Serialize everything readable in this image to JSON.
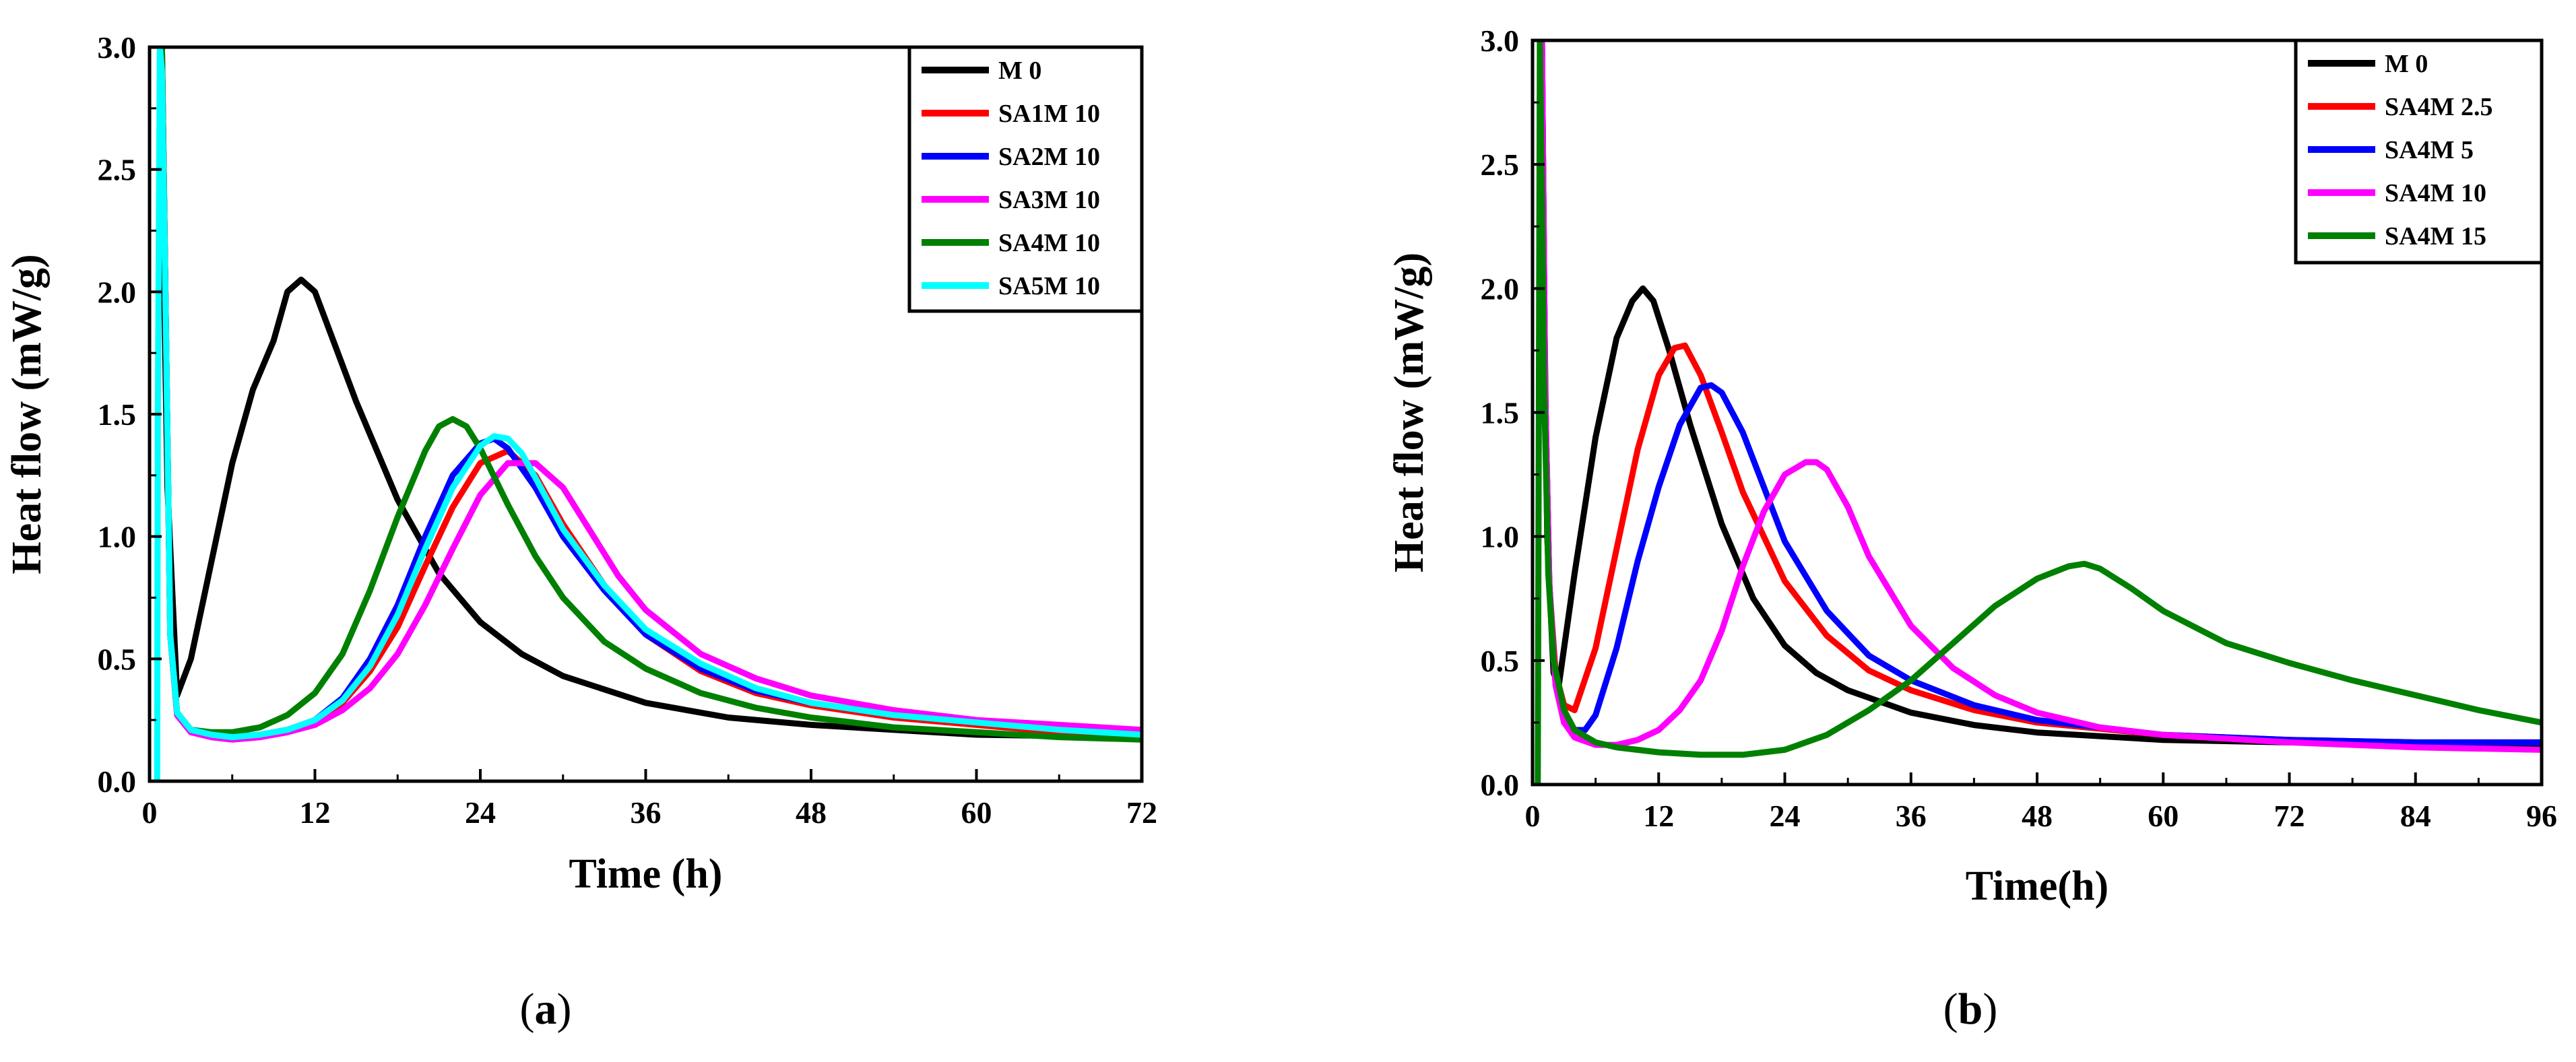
{
  "chart_data": [
    {
      "id": "a",
      "type": "line",
      "caption_letter": "a",
      "xlabel": "Time (h)",
      "ylabel": "Heat flow (mW/g)",
      "xlim": [
        0,
        72
      ],
      "ylim": [
        0,
        3.0
      ],
      "xticks": [
        0,
        12,
        24,
        36,
        48,
        60,
        72
      ],
      "yticks": [
        0.0,
        0.5,
        1.0,
        1.5,
        2.0,
        2.5,
        3.0
      ],
      "ytick_labels": [
        "0.0",
        "0.5",
        "1.0",
        "1.5",
        "2.0",
        "2.5",
        "3.0"
      ],
      "legend_position": "top-right",
      "series": [
        {
          "name": "M 0",
          "color": "#000000",
          "x": [
            0.8,
            1.0,
            1.3,
            2.0,
            3.0,
            4.5,
            6,
            7.5,
            9,
            10,
            11,
            12,
            13,
            15,
            18,
            21,
            24,
            27,
            30,
            36,
            42,
            48,
            54,
            60,
            66,
            72
          ],
          "y": [
            3.0,
            2.2,
            1.2,
            0.35,
            0.5,
            0.9,
            1.3,
            1.6,
            1.8,
            2.0,
            2.05,
            2.0,
            1.85,
            1.55,
            1.15,
            0.85,
            0.65,
            0.52,
            0.43,
            0.32,
            0.26,
            0.23,
            0.21,
            0.19,
            0.185,
            0.18
          ]
        },
        {
          "name": "SA1M 10",
          "color": "#ff0000",
          "x": [
            0.9,
            1.2,
            1.5,
            2,
            3,
            4.5,
            6,
            8,
            10,
            12,
            14,
            16,
            18,
            20,
            22,
            24,
            26,
            28,
            30,
            33,
            36,
            40,
            44,
            48,
            54,
            60,
            66,
            72
          ],
          "y": [
            3.0,
            1.8,
            0.6,
            0.27,
            0.2,
            0.18,
            0.17,
            0.18,
            0.2,
            0.24,
            0.32,
            0.45,
            0.63,
            0.88,
            1.12,
            1.3,
            1.35,
            1.25,
            1.05,
            0.8,
            0.6,
            0.45,
            0.36,
            0.31,
            0.26,
            0.23,
            0.2,
            0.18
          ]
        },
        {
          "name": "SA2M 10",
          "color": "#0000ff",
          "x": [
            0.9,
            1.2,
            1.5,
            2,
            3,
            4.5,
            6,
            8,
            10,
            12,
            14,
            16,
            18,
            20,
            22,
            24,
            25,
            26,
            28,
            30,
            33,
            36,
            40,
            44,
            48,
            54,
            60,
            66,
            72
          ],
          "y": [
            3.0,
            1.8,
            0.6,
            0.28,
            0.21,
            0.19,
            0.18,
            0.19,
            0.21,
            0.25,
            0.34,
            0.5,
            0.72,
            1.0,
            1.25,
            1.38,
            1.4,
            1.36,
            1.2,
            1.0,
            0.78,
            0.6,
            0.46,
            0.37,
            0.32,
            0.27,
            0.24,
            0.22,
            0.2
          ]
        },
        {
          "name": "SA3M 10",
          "color": "#ff00ff",
          "x": [
            0.9,
            1.2,
            1.5,
            2,
            3,
            4.5,
            6,
            8,
            10,
            12,
            14,
            16,
            18,
            20,
            22,
            24,
            26,
            28,
            30,
            32,
            34,
            36,
            40,
            44,
            48,
            54,
            60,
            66,
            72
          ],
          "y": [
            3.0,
            1.8,
            0.6,
            0.27,
            0.2,
            0.18,
            0.17,
            0.18,
            0.2,
            0.23,
            0.29,
            0.38,
            0.52,
            0.72,
            0.95,
            1.17,
            1.3,
            1.3,
            1.2,
            1.02,
            0.84,
            0.7,
            0.52,
            0.42,
            0.35,
            0.29,
            0.25,
            0.23,
            0.21
          ]
        },
        {
          "name": "SA4M 10",
          "color": "#008000",
          "x": [
            0.9,
            1.2,
            1.5,
            2,
            3,
            4.5,
            6,
            8,
            10,
            12,
            14,
            16,
            18,
            20,
            21,
            22,
            23,
            24,
            26,
            28,
            30,
            33,
            36,
            40,
            44,
            48,
            54,
            60,
            66,
            72
          ],
          "y": [
            3.0,
            1.8,
            0.6,
            0.28,
            0.21,
            0.2,
            0.2,
            0.22,
            0.27,
            0.36,
            0.52,
            0.78,
            1.08,
            1.35,
            1.45,
            1.48,
            1.45,
            1.36,
            1.13,
            0.92,
            0.75,
            0.57,
            0.46,
            0.36,
            0.3,
            0.26,
            0.22,
            0.2,
            0.18,
            0.17
          ]
        },
        {
          "name": "SA5M 10",
          "color": "#00ffff",
          "x": [
            0.55,
            0.6,
            0.75,
            0.9,
            1.2,
            1.5,
            2,
            3,
            4.5,
            6,
            8,
            10,
            12,
            14,
            16,
            18,
            20,
            22,
            24,
            25,
            26,
            27,
            28,
            30,
            33,
            36,
            40,
            44,
            48,
            54,
            60,
            66,
            72
          ],
          "y": [
            0.0,
            1.5,
            3.0,
            2.9,
            1.8,
            0.6,
            0.28,
            0.21,
            0.19,
            0.18,
            0.19,
            0.21,
            0.25,
            0.33,
            0.47,
            0.68,
            0.95,
            1.2,
            1.37,
            1.41,
            1.4,
            1.34,
            1.24,
            1.03,
            0.8,
            0.62,
            0.48,
            0.38,
            0.32,
            0.27,
            0.24,
            0.21,
            0.19
          ]
        }
      ]
    },
    {
      "id": "b",
      "type": "line",
      "caption_letter": "b",
      "xlabel": "Time(h)",
      "ylabel": "Heat flow (mW/g)",
      "xlim": [
        0,
        96
      ],
      "ylim": [
        0,
        3.0
      ],
      "xticks": [
        0,
        12,
        24,
        36,
        48,
        60,
        72,
        84,
        96
      ],
      "yticks": [
        0.0,
        0.5,
        1.0,
        1.5,
        2.0,
        2.5,
        3.0
      ],
      "ytick_labels": [
        "0.0",
        "0.5",
        "1.0",
        "1.5",
        "2.0",
        "2.5",
        "3.0"
      ],
      "legend_position": "top-right",
      "series": [
        {
          "name": "M 0",
          "color": "#000000",
          "x": [
            0.9,
            1.1,
            1.4,
            2,
            2.5,
            4,
            6,
            8,
            9.5,
            10.5,
            11.5,
            13,
            15,
            18,
            21,
            24,
            27,
            30,
            36,
            42,
            48,
            60,
            72,
            84,
            96
          ],
          "y": [
            3.0,
            2.0,
            1.0,
            0.45,
            0.4,
            0.85,
            1.4,
            1.8,
            1.95,
            2.0,
            1.95,
            1.75,
            1.45,
            1.05,
            0.75,
            0.56,
            0.45,
            0.38,
            0.29,
            0.24,
            0.21,
            0.18,
            0.17,
            0.165,
            0.16
          ]
        },
        {
          "name": "SA4M 2.5",
          "color": "#ff0000",
          "x": [
            0.9,
            1.2,
            1.6,
            2.2,
            3,
            4,
            6,
            8,
            10,
            12,
            13.5,
            14.5,
            16,
            18,
            20,
            24,
            28,
            32,
            36,
            42,
            48,
            60,
            72,
            84,
            96
          ],
          "y": [
            3.0,
            1.6,
            0.8,
            0.45,
            0.32,
            0.3,
            0.55,
            0.95,
            1.35,
            1.65,
            1.76,
            1.77,
            1.65,
            1.42,
            1.18,
            0.82,
            0.6,
            0.46,
            0.38,
            0.3,
            0.25,
            0.2,
            0.18,
            0.17,
            0.17
          ]
        },
        {
          "name": "SA4M 5",
          "color": "#0000ff",
          "x": [
            0.9,
            1.2,
            1.6,
            2.2,
            3,
            4,
            5,
            6,
            8,
            10,
            12,
            14,
            16,
            17,
            18,
            20,
            22,
            24,
            28,
            32,
            36,
            42,
            48,
            60,
            72,
            84,
            96
          ],
          "y": [
            3.0,
            1.6,
            0.8,
            0.4,
            0.25,
            0.22,
            0.22,
            0.28,
            0.55,
            0.9,
            1.2,
            1.45,
            1.6,
            1.61,
            1.58,
            1.42,
            1.2,
            0.98,
            0.7,
            0.52,
            0.42,
            0.32,
            0.26,
            0.2,
            0.18,
            0.17,
            0.17
          ]
        },
        {
          "name": "SA4M 10",
          "color": "#ff00ff",
          "x": [
            0.9,
            1.2,
            1.6,
            2.2,
            3,
            4,
            6,
            8,
            10,
            12,
            14,
            16,
            18,
            20,
            22,
            24,
            26,
            27,
            28,
            30,
            32,
            36,
            40,
            44,
            48,
            54,
            60,
            72,
            84,
            96
          ],
          "y": [
            3.0,
            1.6,
            0.8,
            0.4,
            0.25,
            0.19,
            0.16,
            0.16,
            0.18,
            0.22,
            0.3,
            0.42,
            0.62,
            0.88,
            1.1,
            1.25,
            1.3,
            1.3,
            1.27,
            1.12,
            0.92,
            0.64,
            0.47,
            0.36,
            0.29,
            0.23,
            0.2,
            0.17,
            0.15,
            0.14
          ]
        },
        {
          "name": "SA4M 15",
          "color": "#008000",
          "x": [
            0.5,
            0.7,
            0.9,
            1.1,
            1.5,
            2,
            3,
            4,
            6,
            8,
            12,
            16,
            20,
            24,
            28,
            32,
            36,
            40,
            44,
            48,
            51,
            52.5,
            54,
            57,
            60,
            66,
            72,
            78,
            84,
            90,
            96
          ],
          "y": [
            0.0,
            3.0,
            2.4,
            1.6,
            0.85,
            0.5,
            0.3,
            0.22,
            0.17,
            0.15,
            0.13,
            0.12,
            0.12,
            0.14,
            0.2,
            0.3,
            0.42,
            0.57,
            0.72,
            0.83,
            0.88,
            0.89,
            0.87,
            0.79,
            0.7,
            0.57,
            0.49,
            0.42,
            0.36,
            0.3,
            0.25
          ]
        }
      ]
    }
  ]
}
